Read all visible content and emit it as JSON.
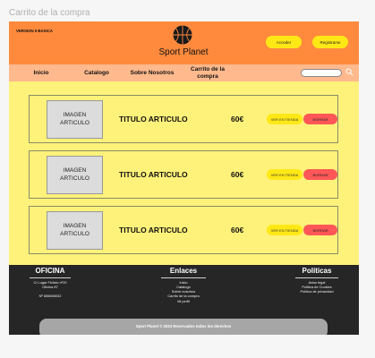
{
  "frame_title": "Carrito de la compra",
  "header": {
    "version": "VERSION 0 BASICA",
    "brand": "Sport Planet",
    "login_label": "Acceder",
    "register_label": "Registrarse"
  },
  "nav": {
    "items": [
      "Inicio",
      "Catalogo",
      "Sobre Nosotros",
      "Carrito de la compra"
    ],
    "search_placeholder": ""
  },
  "cart": {
    "items": [
      {
        "image_label": "IMAGEN ARTICULO",
        "title": "TITULO ARTICULO",
        "price": "60€",
        "view_label": "VER EN TIENDA",
        "delete_label": "BORRAR"
      },
      {
        "image_label": "IMAGEN ARTICULO",
        "title": "TITULO ARTICULO",
        "price": "60€",
        "view_label": "VER EN TIENDA",
        "delete_label": "BORRAR"
      },
      {
        "image_label": "IMAGEN ARTICULO",
        "title": "TITULO ARTICULO",
        "price": "60€",
        "view_label": "VER EN TIENDA",
        "delete_label": "BORRAR"
      }
    ]
  },
  "footer": {
    "office": {
      "heading": "OFICINA",
      "lines": [
        "C/ Lugar Ficticio nº20",
        "Oficina 87",
        "",
        "Nº 856658032"
      ]
    },
    "links": {
      "heading": "Enlaces",
      "lines": [
        "Inicio",
        "Catalogo",
        "Sobre nosotros",
        "Carrito de la compra",
        "Mi perfil"
      ]
    },
    "policies": {
      "heading": "Políticas",
      "lines": [
        "Aviso legal",
        "Política de Cookies",
        "Política de privacidad"
      ]
    },
    "copyright": "Sport Planet © 2023 Reservados todos los derechos"
  },
  "colors": {
    "header": "#ff8a3d",
    "nav": "#ffb98d",
    "content": "#fff27a",
    "yellow_button": "#ffe816",
    "delete_button": "#ff5757",
    "footer": "#262626"
  }
}
